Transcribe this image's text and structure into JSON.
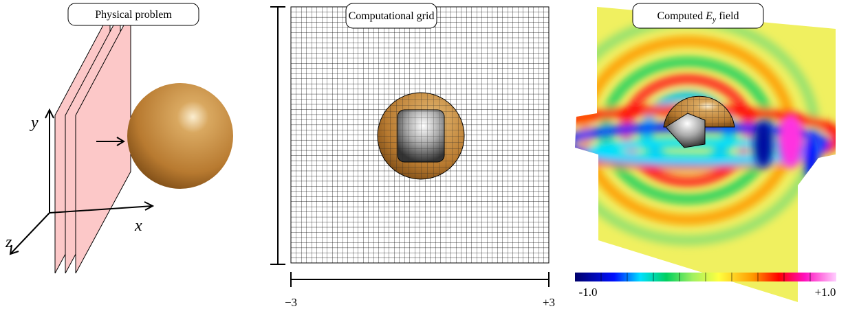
{
  "panels": [
    {
      "title": "Physical problem",
      "axes": {
        "x": "x",
        "y": "y",
        "z": "z"
      }
    },
    {
      "title": "Computational grid",
      "range": {
        "min": "−3",
        "max": "+3"
      }
    },
    {
      "title": {
        "prefix": "Computed",
        "symbol": "E",
        "subscript": "y",
        "suffix": "field"
      },
      "colorbar": {
        "min": "-1.0",
        "max": "+1.0"
      }
    }
  ]
}
